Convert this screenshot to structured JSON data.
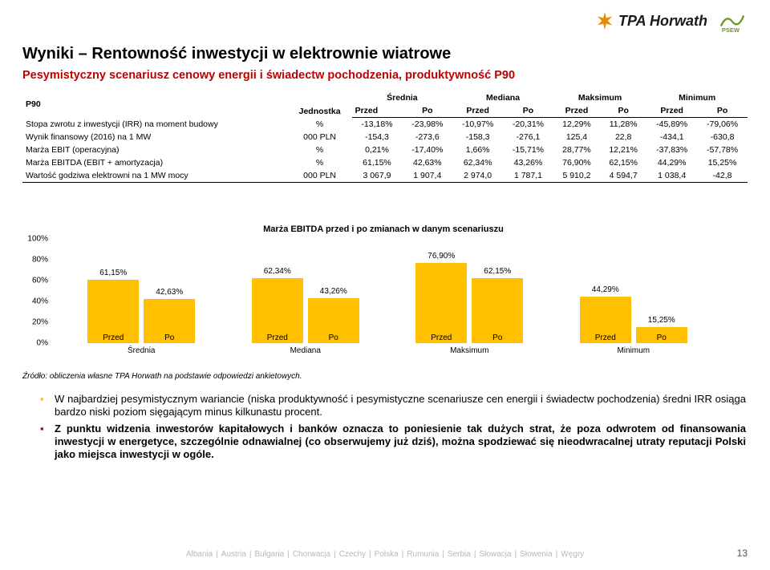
{
  "logos": {
    "tpa": "TPA Horwath"
  },
  "title": "Wyniki – Rentowność inwestycji w elektrownie wiatrowe",
  "subtitle": "Pesymistyczny scenariusz cenowy energii i świadectw pochodzenia, produktywność P90",
  "table": {
    "p90": "P90",
    "unit_header": "Jednostka",
    "col_groups": [
      "Średnia",
      "Mediana",
      "Maksimum",
      "Minimum"
    ],
    "sub_cols": [
      "Przed",
      "Po"
    ],
    "rows": [
      {
        "label": "Stopa zwrotu z inwestycji (IRR) na moment budowy",
        "unit": "%",
        "vals": [
          "-13,18%",
          "-23,98%",
          "-10,97%",
          "-20,31%",
          "12,29%",
          "11,28%",
          "-45,89%",
          "-79,06%"
        ]
      },
      {
        "label": "Wynik finansowy (2016) na 1 MW",
        "unit": "000 PLN",
        "vals": [
          "-154,3",
          "-273,6",
          "-158,3",
          "-276,1",
          "125,4",
          "22,8",
          "-434,1",
          "-630,8"
        ]
      },
      {
        "label": "Marża EBIT (operacyjna)",
        "unit": "%",
        "vals": [
          "0,21%",
          "-17,40%",
          "1,66%",
          "-15,71%",
          "28,77%",
          "12,21%",
          "-37,83%",
          "-57,78%"
        ]
      },
      {
        "label": "Marża EBITDA (EBIT + amortyzacja)",
        "unit": "%",
        "vals": [
          "61,15%",
          "42,63%",
          "62,34%",
          "43,26%",
          "76,90%",
          "62,15%",
          "44,29%",
          "15,25%"
        ]
      },
      {
        "label": "Wartość godziwa elektrowni na 1 MW mocy",
        "unit": "000 PLN",
        "vals": [
          "3 067,9",
          "1 907,4",
          "2 974,0",
          "1 787,1",
          "5 910,2",
          "4 594,7",
          "1 038,4",
          "-42,8"
        ]
      }
    ]
  },
  "chart": {
    "title": "Marża EBITDA przed i po zmianach w danym scenariuszu",
    "y_ticks": [
      "100%",
      "80%",
      "60%",
      "40%",
      "20%",
      "0%"
    ],
    "y_max": 100,
    "groups": [
      {
        "bars": [
          {
            "label": "61,15%",
            "value": 61.15,
            "color": "#ffc000"
          },
          {
            "label": "42,63%",
            "value": 42.63,
            "color": "#ffc000"
          }
        ],
        "x": [
          "Przed",
          "Po"
        ],
        "x2": "Średnia"
      },
      {
        "bars": [
          {
            "label": "62,34%",
            "value": 62.34,
            "color": "#ffc000"
          },
          {
            "label": "43,26%",
            "value": 43.26,
            "color": "#ffc000"
          }
        ],
        "x": [
          "Przed",
          "Po"
        ],
        "x2": "Mediana"
      },
      {
        "bars": [
          {
            "label": "76,90%",
            "value": 76.9,
            "color": "#ffc000"
          },
          {
            "label": "62,15%",
            "value": 62.15,
            "color": "#ffc000"
          }
        ],
        "x": [
          "Przed",
          "Po"
        ],
        "x2": "Maksimum"
      },
      {
        "bars": [
          {
            "label": "44,29%",
            "value": 44.29,
            "color": "#ffc000"
          },
          {
            "label": "15,25%",
            "value": 15.25,
            "color": "#ffc000"
          }
        ],
        "x": [
          "Przed",
          "Po"
        ],
        "x2": "Minimum"
      }
    ]
  },
  "source": "Źródło: obliczenia własne TPA Horwath na podstawie odpowiedzi ankietowych.",
  "bullets": {
    "b1": "W najbardziej pesymistycznym wariancie (niska produktywność i pesymistyczne scenariusze cen energii i świadectw pochodzenia) średni IRR osiąga bardzo niski poziom sięgającym minus kilkunastu procent.",
    "b2": "Z punktu widzenia inwestorów kapitałowych i banków oznacza to poniesienie tak dużych strat, że poza odwrotem od finansowania inwestycji w energetyce, szczególnie odnawialnej (co obserwujemy już dziś), można spodziewać się nieodwracalnej utraty reputacji Polski jako miejsca inwestycji w ogóle."
  },
  "footer": [
    "Albania",
    "Austria",
    "Bułgaria",
    "Chorwacja",
    "Czechy",
    "Polska",
    "Rumunia",
    "Serbia",
    "Słowacja",
    "Słowenia",
    "Węgry"
  ],
  "page_num": "13"
}
